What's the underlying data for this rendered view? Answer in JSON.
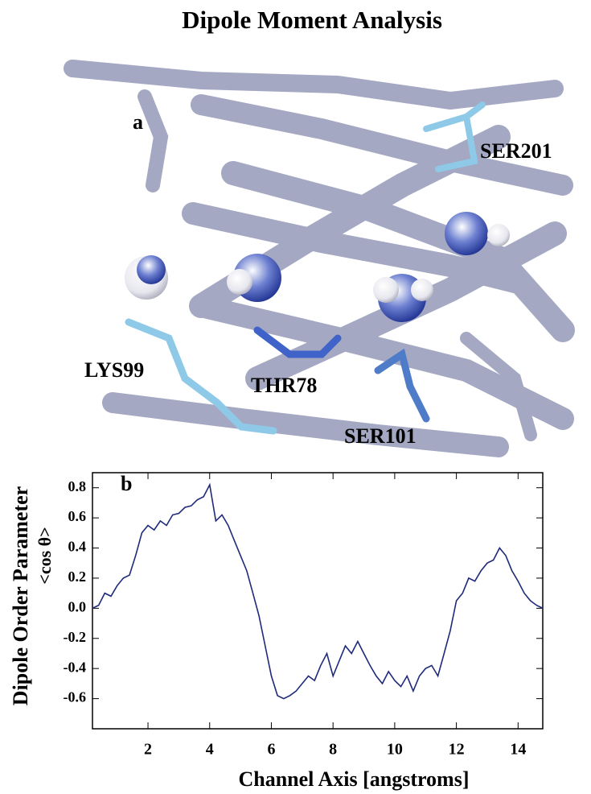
{
  "chart_data": {
    "type": "line",
    "title": "Dipole Moment Analysis",
    "panel_label": "b",
    "x_label": "Channel Axis [angstroms]",
    "y_label": "Dipole Order Parameter",
    "y_label_sub": "<cos θ>",
    "x": [
      0.2,
      0.4,
      0.6,
      0.8,
      1.0,
      1.2,
      1.4,
      1.6,
      1.8,
      2.0,
      2.2,
      2.4,
      2.6,
      2.8,
      3.0,
      3.2,
      3.4,
      3.6,
      3.8,
      4.0,
      4.2,
      4.4,
      4.6,
      4.8,
      5.0,
      5.2,
      5.4,
      5.6,
      5.8,
      6.0,
      6.2,
      6.4,
      6.6,
      6.8,
      7.0,
      7.2,
      7.4,
      7.6,
      7.8,
      8.0,
      8.2,
      8.4,
      8.6,
      8.8,
      9.0,
      9.2,
      9.4,
      9.6,
      9.8,
      10.0,
      10.2,
      10.4,
      10.6,
      10.8,
      11.0,
      11.2,
      11.4,
      11.6,
      11.8,
      12.0,
      12.2,
      12.4,
      12.6,
      12.8,
      13.0,
      13.2,
      13.4,
      13.6,
      13.8,
      14.0,
      14.2,
      14.4,
      14.6,
      14.8
    ],
    "series": [
      {
        "color": "#1f2a7a",
        "values": [
          0.0,
          0.02,
          0.1,
          0.08,
          0.15,
          0.2,
          0.22,
          0.35,
          0.5,
          0.55,
          0.52,
          0.58,
          0.55,
          0.62,
          0.63,
          0.67,
          0.68,
          0.72,
          0.74,
          0.82,
          0.58,
          0.62,
          0.55,
          0.45,
          0.35,
          0.25,
          0.1,
          -0.05,
          -0.25,
          -0.45,
          -0.58,
          -0.6,
          -0.58,
          -0.55,
          -0.5,
          -0.45,
          -0.48,
          -0.38,
          -0.3,
          -0.45,
          -0.35,
          -0.25,
          -0.3,
          -0.22,
          -0.3,
          -0.38,
          -0.45,
          -0.5,
          -0.42,
          -0.48,
          -0.52,
          -0.45,
          -0.55,
          -0.45,
          -0.4,
          -0.38,
          -0.45,
          -0.3,
          -0.15,
          0.05,
          0.1,
          0.2,
          0.18,
          0.25,
          0.3,
          0.32,
          0.4,
          0.35,
          0.25,
          0.18,
          0.1,
          0.05,
          0.02,
          0.0
        ]
      }
    ],
    "xlim": [
      0.2,
      14.8
    ],
    "xticks": [
      2,
      4,
      6,
      8,
      10,
      12,
      14
    ],
    "ylim": [
      -0.8,
      0.9
    ],
    "yticks": [
      0.8,
      0.6,
      0.4,
      0.2,
      {
        "value": 0,
        "label": "0.0"
      },
      -0.2,
      -0.4,
      -0.6
    ]
  },
  "image_panel": {
    "panel_label": "a",
    "labels": [
      "SER201",
      "LYS99",
      "THR78",
      "SER101"
    ]
  }
}
